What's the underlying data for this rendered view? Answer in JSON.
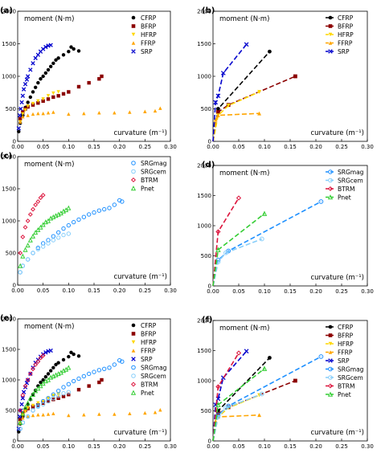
{
  "colors": {
    "CFRP": "#000000",
    "BFRP": "#8b0000",
    "HFRP": "#ffd700",
    "FFRP": "#ffa500",
    "SRP": "#0000cd",
    "SRGmag": "#1e90ff",
    "SRGcem": "#87cefa",
    "BTRM": "#dc143c",
    "Pnet": "#32cd32"
  },
  "chart_data": [
    {
      "panel": "(a)",
      "type": "scatter",
      "ylabel": "moment (N·m)",
      "xlabel": "curvature (m⁻¹)",
      "xlim": [
        0,
        0.3
      ],
      "ylim": [
        0,
        2000
      ],
      "xticks": [
        "0.00",
        "0.05",
        "0.10",
        "0.15",
        "0.20",
        "0.25",
        "0.30"
      ],
      "yticks": [
        "0",
        "500",
        "1000",
        "1500",
        "2000"
      ],
      "legend": [
        "CFRP",
        "BFRP",
        "HFRP",
        "FFRP",
        "SRP"
      ],
      "series": [
        {
          "name": "CFRP",
          "marker": "circle",
          "points": [
            [
              0.002,
              150
            ],
            [
              0.005,
              280
            ],
            [
              0.01,
              400
            ],
            [
              0.015,
              520
            ],
            [
              0.02,
              600
            ],
            [
              0.025,
              680
            ],
            [
              0.03,
              760
            ],
            [
              0.035,
              830
            ],
            [
              0.04,
              900
            ],
            [
              0.045,
              960
            ],
            [
              0.05,
              1000
            ],
            [
              0.055,
              1050
            ],
            [
              0.06,
              1100
            ],
            [
              0.065,
              1150
            ],
            [
              0.07,
              1200
            ],
            [
              0.075,
              1250
            ],
            [
              0.08,
              1280
            ],
            [
              0.09,
              1330
            ],
            [
              0.1,
              1380
            ],
            [
              0.105,
              1450
            ],
            [
              0.11,
              1420
            ],
            [
              0.12,
              1390
            ]
          ]
        },
        {
          "name": "BFRP",
          "marker": "square",
          "points": [
            [
              0.005,
              350
            ],
            [
              0.01,
              450
            ],
            [
              0.015,
              500
            ],
            [
              0.02,
              530
            ],
            [
              0.03,
              560
            ],
            [
              0.04,
              590
            ],
            [
              0.05,
              620
            ],
            [
              0.06,
              650
            ],
            [
              0.07,
              680
            ],
            [
              0.08,
              700
            ],
            [
              0.09,
              730
            ],
            [
              0.1,
              760
            ],
            [
              0.12,
              840
            ],
            [
              0.14,
              900
            ],
            [
              0.16,
              960
            ],
            [
              0.165,
              1000
            ]
          ]
        },
        {
          "name": "HFRP",
          "marker": "triangle-down",
          "points": [
            [
              0.005,
              300
            ],
            [
              0.01,
              420
            ],
            [
              0.015,
              480
            ],
            [
              0.02,
              540
            ],
            [
              0.03,
              580
            ],
            [
              0.04,
              620
            ],
            [
              0.05,
              650
            ],
            [
              0.06,
              700
            ],
            [
              0.07,
              740
            ],
            [
              0.08,
              760
            ]
          ]
        },
        {
          "name": "FFRP",
          "marker": "triangle-up",
          "points": [
            [
              0.005,
              300
            ],
            [
              0.01,
              380
            ],
            [
              0.02,
              400
            ],
            [
              0.03,
              420
            ],
            [
              0.04,
              430
            ],
            [
              0.05,
              430
            ],
            [
              0.06,
              440
            ],
            [
              0.07,
              450
            ],
            [
              0.1,
              420
            ],
            [
              0.13,
              430
            ],
            [
              0.16,
              440
            ],
            [
              0.19,
              440
            ],
            [
              0.22,
              450
            ],
            [
              0.25,
              460
            ],
            [
              0.27,
              470
            ],
            [
              0.28,
              510
            ]
          ]
        },
        {
          "name": "SRP",
          "marker": "x",
          "points": [
            [
              0.002,
              200
            ],
            [
              0.004,
              400
            ],
            [
              0.006,
              500
            ],
            [
              0.008,
              600
            ],
            [
              0.01,
              700
            ],
            [
              0.012,
              800
            ],
            [
              0.015,
              880
            ],
            [
              0.018,
              950
            ],
            [
              0.02,
              1000
            ],
            [
              0.025,
              1100
            ],
            [
              0.03,
              1200
            ],
            [
              0.035,
              1280
            ],
            [
              0.04,
              1330
            ],
            [
              0.045,
              1380
            ],
            [
              0.05,
              1420
            ],
            [
              0.055,
              1450
            ],
            [
              0.06,
              1470
            ],
            [
              0.065,
              1480
            ]
          ]
        }
      ]
    },
    {
      "panel": "(b)",
      "type": "line",
      "ylabel": "moment (N·m)",
      "xlabel": "curvature (m⁻¹)",
      "xlim": [
        0,
        0.3
      ],
      "ylim": [
        0,
        2000
      ],
      "xticks": [
        "0.00",
        "0.05",
        "0.10",
        "0.15",
        "0.20",
        "0.25",
        "0.30"
      ],
      "yticks": [
        "0",
        "500",
        "1000",
        "1500",
        "2000"
      ],
      "legend": [
        "CFRP",
        "BFRP",
        "HFRP",
        "FFRP",
        "SRP"
      ],
      "series": [
        {
          "name": "CFRP",
          "marker": "circle",
          "points": [
            [
              0,
              0
            ],
            [
              0.01,
              500
            ],
            [
              0.11,
              1380
            ]
          ]
        },
        {
          "name": "BFRP",
          "marker": "square",
          "points": [
            [
              0,
              0
            ],
            [
              0.01,
              450
            ],
            [
              0.03,
              560
            ],
            [
              0.16,
              1000
            ]
          ]
        },
        {
          "name": "HFRP",
          "marker": "triangle-down",
          "points": [
            [
              0,
              0
            ],
            [
              0.01,
              400
            ],
            [
              0.03,
              550
            ],
            [
              0.09,
              760
            ]
          ]
        },
        {
          "name": "FFRP",
          "marker": "triangle-up",
          "points": [
            [
              0,
              0
            ],
            [
              0.005,
              330
            ],
            [
              0.01,
              400
            ],
            [
              0.09,
              430
            ]
          ]
        },
        {
          "name": "SRP",
          "marker": "x",
          "points": [
            [
              0,
              0
            ],
            [
              0.005,
              600
            ],
            [
              0.01,
              700
            ],
            [
              0.02,
              1050
            ],
            [
              0.065,
              1490
            ]
          ]
        }
      ]
    },
    {
      "panel": "(c)",
      "type": "scatter",
      "ylabel": "moment (N·m)",
      "xlabel": "curvature (m⁻¹)",
      "xlim": [
        0,
        0.3
      ],
      "ylim": [
        0,
        2000
      ],
      "xticks": [
        "0.00",
        "0.05",
        "0.10",
        "0.15",
        "0.20",
        "0.25",
        "0.30"
      ],
      "yticks": [
        "0",
        "500",
        "1000",
        "1500",
        "2000"
      ],
      "legend": [
        "SRGmag",
        "SRGcem",
        "BTRM",
        "Pnet"
      ],
      "series": [
        {
          "name": "SRGmag",
          "marker": "circle-open",
          "points": [
            [
              0.005,
              200
            ],
            [
              0.01,
              300
            ],
            [
              0.02,
              400
            ],
            [
              0.03,
              500
            ],
            [
              0.04,
              580
            ],
            [
              0.05,
              650
            ],
            [
              0.06,
              700
            ],
            [
              0.07,
              760
            ],
            [
              0.08,
              820
            ],
            [
              0.09,
              880
            ],
            [
              0.1,
              930
            ],
            [
              0.11,
              980
            ],
            [
              0.12,
              1020
            ],
            [
              0.13,
              1060
            ],
            [
              0.14,
              1100
            ],
            [
              0.15,
              1130
            ],
            [
              0.16,
              1160
            ],
            [
              0.17,
              1180
            ],
            [
              0.18,
              1200
            ],
            [
              0.19,
              1250
            ],
            [
              0.2,
              1320
            ],
            [
              0.205,
              1300
            ]
          ]
        },
        {
          "name": "SRGcem",
          "marker": "circle-open",
          "points": [
            [
              0.005,
              200
            ],
            [
              0.01,
              300
            ],
            [
              0.02,
              400
            ],
            [
              0.03,
              500
            ],
            [
              0.04,
              560
            ],
            [
              0.05,
              600
            ],
            [
              0.06,
              650
            ],
            [
              0.07,
              700
            ],
            [
              0.08,
              740
            ],
            [
              0.09,
              780
            ],
            [
              0.1,
              800
            ]
          ]
        },
        {
          "name": "BTRM",
          "marker": "diamond-open",
          "points": [
            [
              0.005,
              500
            ],
            [
              0.01,
              750
            ],
            [
              0.015,
              900
            ],
            [
              0.02,
              1000
            ],
            [
              0.025,
              1100
            ],
            [
              0.03,
              1180
            ],
            [
              0.035,
              1250
            ],
            [
              0.04,
              1300
            ],
            [
              0.045,
              1360
            ],
            [
              0.05,
              1400
            ]
          ]
        },
        {
          "name": "Pnet",
          "marker": "triangle-open",
          "points": [
            [
              0.005,
              300
            ],
            [
              0.01,
              450
            ],
            [
              0.015,
              550
            ],
            [
              0.02,
              620
            ],
            [
              0.025,
              700
            ],
            [
              0.03,
              760
            ],
            [
              0.035,
              820
            ],
            [
              0.04,
              860
            ],
            [
              0.045,
              900
            ],
            [
              0.05,
              940
            ],
            [
              0.055,
              980
            ],
            [
              0.06,
              1000
            ],
            [
              0.065,
              1040
            ],
            [
              0.07,
              1060
            ],
            [
              0.075,
              1080
            ],
            [
              0.08,
              1100
            ],
            [
              0.085,
              1120
            ],
            [
              0.09,
              1150
            ],
            [
              0.095,
              1170
            ],
            [
              0.1,
              1200
            ]
          ]
        }
      ]
    },
    {
      "panel": "(d)",
      "type": "line",
      "ylabel": "moment (N·m)",
      "xlabel": "curvature (m⁻¹)",
      "xlim": [
        0,
        0.3
      ],
      "ylim": [
        0,
        2000
      ],
      "xticks": [
        "0.00",
        "0.05",
        "0.10",
        "0.15",
        "0.20",
        "0.25",
        "0.30"
      ],
      "yticks": [
        "0",
        "500",
        "1000",
        "1500",
        "2000"
      ],
      "legend": [
        "SRGmag",
        "SRGcem",
        "BTRM",
        "Pnet"
      ],
      "series": [
        {
          "name": "SRGmag",
          "marker": "circle-open",
          "points": [
            [
              0,
              0
            ],
            [
              0.01,
              430
            ],
            [
              0.03,
              580
            ],
            [
              0.21,
              1400
            ]
          ]
        },
        {
          "name": "SRGcem",
          "marker": "circle-open",
          "points": [
            [
              0,
              0
            ],
            [
              0.01,
              400
            ],
            [
              0.025,
              550
            ],
            [
              0.095,
              780
            ]
          ]
        },
        {
          "name": "BTRM",
          "marker": "diamond-open",
          "points": [
            [
              0,
              0
            ],
            [
              0.01,
              900
            ],
            [
              0.05,
              1460
            ]
          ]
        },
        {
          "name": "Pnet",
          "marker": "triangle-open",
          "points": [
            [
              0,
              0
            ],
            [
              0.01,
              600
            ],
            [
              0.1,
              1200
            ]
          ]
        }
      ]
    },
    {
      "panel": "(e)",
      "type": "scatter",
      "ylabel": "moment (N·m)",
      "xlabel": "curvature (m⁻¹)",
      "xlim": [
        0,
        0.3
      ],
      "ylim": [
        0,
        2000
      ],
      "xticks": [
        "0.00",
        "0.05",
        "0.10",
        "0.15",
        "0.20",
        "0.25",
        "0.30"
      ],
      "yticks": [
        "0",
        "500",
        "1000",
        "1500",
        "2000"
      ],
      "legend": [
        "CFRP",
        "BFRP",
        "HFRP",
        "FFRP",
        "SRP",
        "SRGmag",
        "SRGcem",
        "BTRM",
        "Pnet"
      ],
      "combine": [
        "(a)",
        "(c)"
      ]
    },
    {
      "panel": "(f)",
      "type": "line",
      "ylabel": "moment (N·m)",
      "xlabel": "curvature (m⁻¹)",
      "xlim": [
        0,
        0.3
      ],
      "ylim": [
        0,
        2000
      ],
      "xticks": [
        "0.00",
        "0.05",
        "0.10",
        "0.15",
        "0.20",
        "0.25",
        "0.30"
      ],
      "yticks": [
        "0",
        "500",
        "1000",
        "1500",
        "2000"
      ],
      "legend": [
        "CFRP",
        "BFRP",
        "HFRP",
        "FFRP",
        "SRP",
        "SRGmag",
        "SRGcem",
        "BTRM",
        "Pnet"
      ],
      "combine": [
        "(b)",
        "(d)"
      ]
    }
  ]
}
